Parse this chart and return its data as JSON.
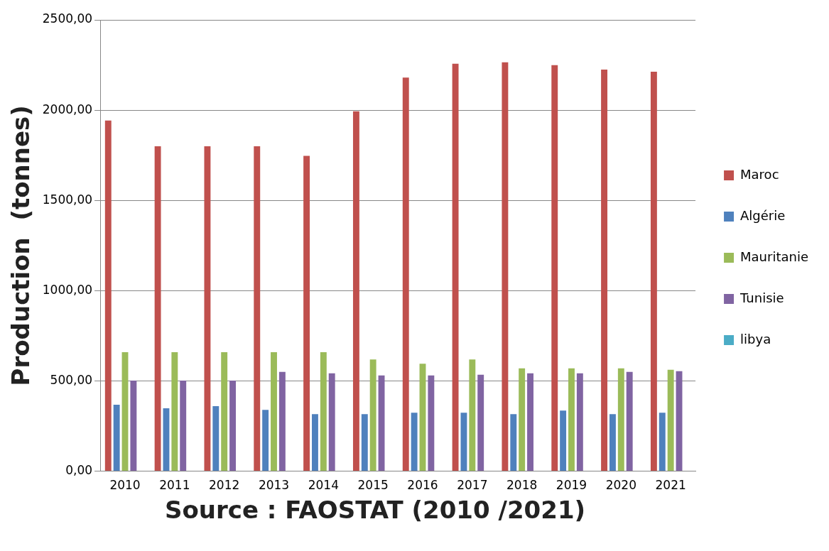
{
  "chart_data": {
    "type": "bar",
    "ylabel": "Production  (tonnes)",
    "annotations": [
      "Source : FAOSTAT (2010 /2021)"
    ],
    "categories": [
      "2010",
      "2011",
      "2012",
      "2013",
      "2014",
      "2015",
      "2016",
      "2017",
      "2018",
      "2019",
      "2020",
      "2021"
    ],
    "series": [
      {
        "name": "Maroc",
        "color": "#c0504d",
        "values": [
          1942,
          1800,
          1800,
          1800,
          1747,
          1994,
          2180,
          2257,
          2265,
          2249,
          2225,
          2213
        ]
      },
      {
        "name": "Algérie",
        "color": "#4f81bd",
        "values": [
          368,
          348,
          360,
          340,
          316,
          316,
          324,
          324,
          316,
          336,
          316,
          324
        ]
      },
      {
        "name": "Mauritanie",
        "color": "#9bbb59",
        "values": [
          659,
          659,
          659,
          659,
          659,
          619,
          595,
          619,
          570,
          570,
          570,
          562
        ]
      },
      {
        "name": "Tunisie",
        "color": "#8064a2",
        "values": [
          502,
          502,
          502,
          550,
          542,
          530,
          530,
          534,
          542,
          542,
          550,
          554
        ]
      },
      {
        "name": "libya",
        "color": "#4bacc6",
        "values": [
          0,
          0,
          0,
          0,
          0,
          0,
          0,
          0,
          0,
          0,
          0,
          0
        ]
      }
    ],
    "ylim": [
      0,
      2500
    ],
    "yticks": [
      {
        "value": 0,
        "label": "0,00"
      },
      {
        "value": 500,
        "label": "500,00"
      },
      {
        "value": 1000,
        "label": "1000,00"
      },
      {
        "value": 1500,
        "label": "1500,00"
      },
      {
        "value": 2000,
        "label": "2000,00"
      },
      {
        "value": 2500,
        "label": "2500,00"
      }
    ],
    "grid": "y",
    "legend": "right"
  }
}
